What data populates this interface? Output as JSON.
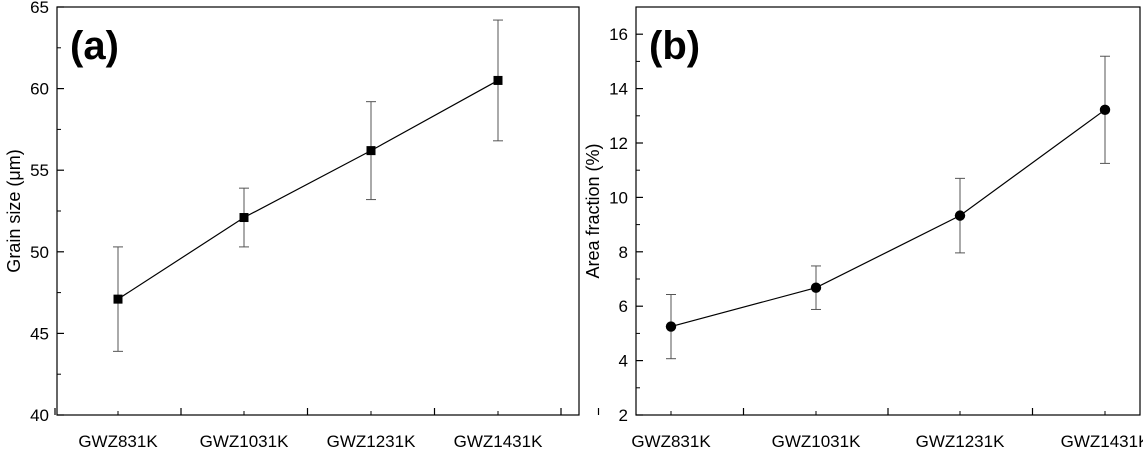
{
  "chart_data": [
    {
      "type": "line",
      "panel_label": "(a)",
      "categories": [
        "GWZ831K",
        "GWZ1031K",
        "GWZ1231K",
        "GWZ1431K"
      ],
      "series": [
        {
          "values": [
            47.1,
            52.1,
            56.2,
            60.5
          ],
          "error": [
            3.2,
            1.8,
            3.0,
            3.7
          ],
          "marker": "square",
          "color": "#000000"
        }
      ],
      "xlabel": "",
      "ylabel": "Grain size (μm)",
      "ylim": [
        40,
        65
      ],
      "yticks": [
        40,
        45,
        50,
        55,
        60,
        65
      ],
      "yminor_step": 2.5,
      "grid": false,
      "legend": "none"
    },
    {
      "type": "line",
      "panel_label": "(b)",
      "categories": [
        "GWZ831K",
        "GWZ1031K",
        "GWZ1231K",
        "GWZ1431K"
      ],
      "series": [
        {
          "values": [
            5.25,
            6.68,
            9.33,
            13.22
          ],
          "error": [
            1.18,
            0.8,
            1.37,
            1.97
          ],
          "marker": "circle",
          "color": "#000000"
        }
      ],
      "xlabel": "",
      "ylabel": "Area fraction (%)",
      "ylim": [
        2,
        17
      ],
      "yticks": [
        2,
        4,
        6,
        8,
        10,
        12,
        14,
        16
      ],
      "yminor_step": 1,
      "grid": false,
      "legend": "none"
    }
  ]
}
